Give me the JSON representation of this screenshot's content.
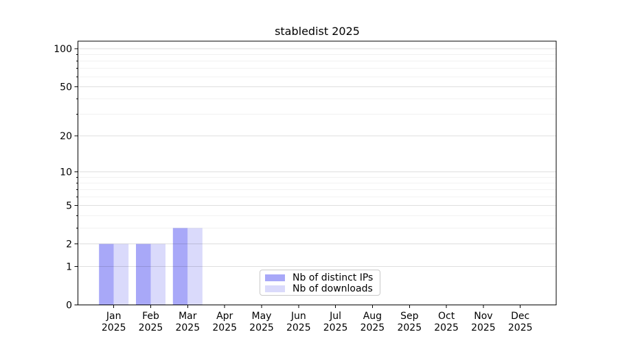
{
  "figure": {
    "title": "stabledist 2025"
  },
  "chart_data": {
    "type": "bar",
    "title": "stabledist 2025",
    "categories": [
      "Jan",
      "Feb",
      "Mar",
      "Apr",
      "May",
      "Jun",
      "Jul",
      "Aug",
      "Sep",
      "Oct",
      "Nov",
      "Dec"
    ],
    "category_year_label": "2025",
    "series": [
      {
        "name": "Nb of distinct IPs",
        "color": "#a8a8f8",
        "values": [
          2,
          2,
          3,
          0,
          0,
          0,
          0,
          0,
          0,
          0,
          0,
          0
        ]
      },
      {
        "name": "Nb of downloads",
        "color": "#dadafb",
        "values": [
          2,
          2,
          3,
          0,
          0,
          0,
          0,
          0,
          0,
          0,
          0,
          0
        ]
      }
    ],
    "xlabel": "",
    "ylabel": "",
    "yscale": "log1p",
    "yticks_major": [
      0,
      1,
      2,
      5,
      10,
      20,
      50,
      100
    ],
    "yticks_minor": [
      3,
      4,
      6,
      7,
      8,
      9,
      30,
      40,
      60,
      70,
      80,
      90
    ],
    "ylim": [
      0,
      115
    ],
    "grid": true,
    "legend": {
      "position": "lower-center",
      "entries": [
        "Nb of distinct IPs",
        "Nb of downloads"
      ]
    }
  }
}
